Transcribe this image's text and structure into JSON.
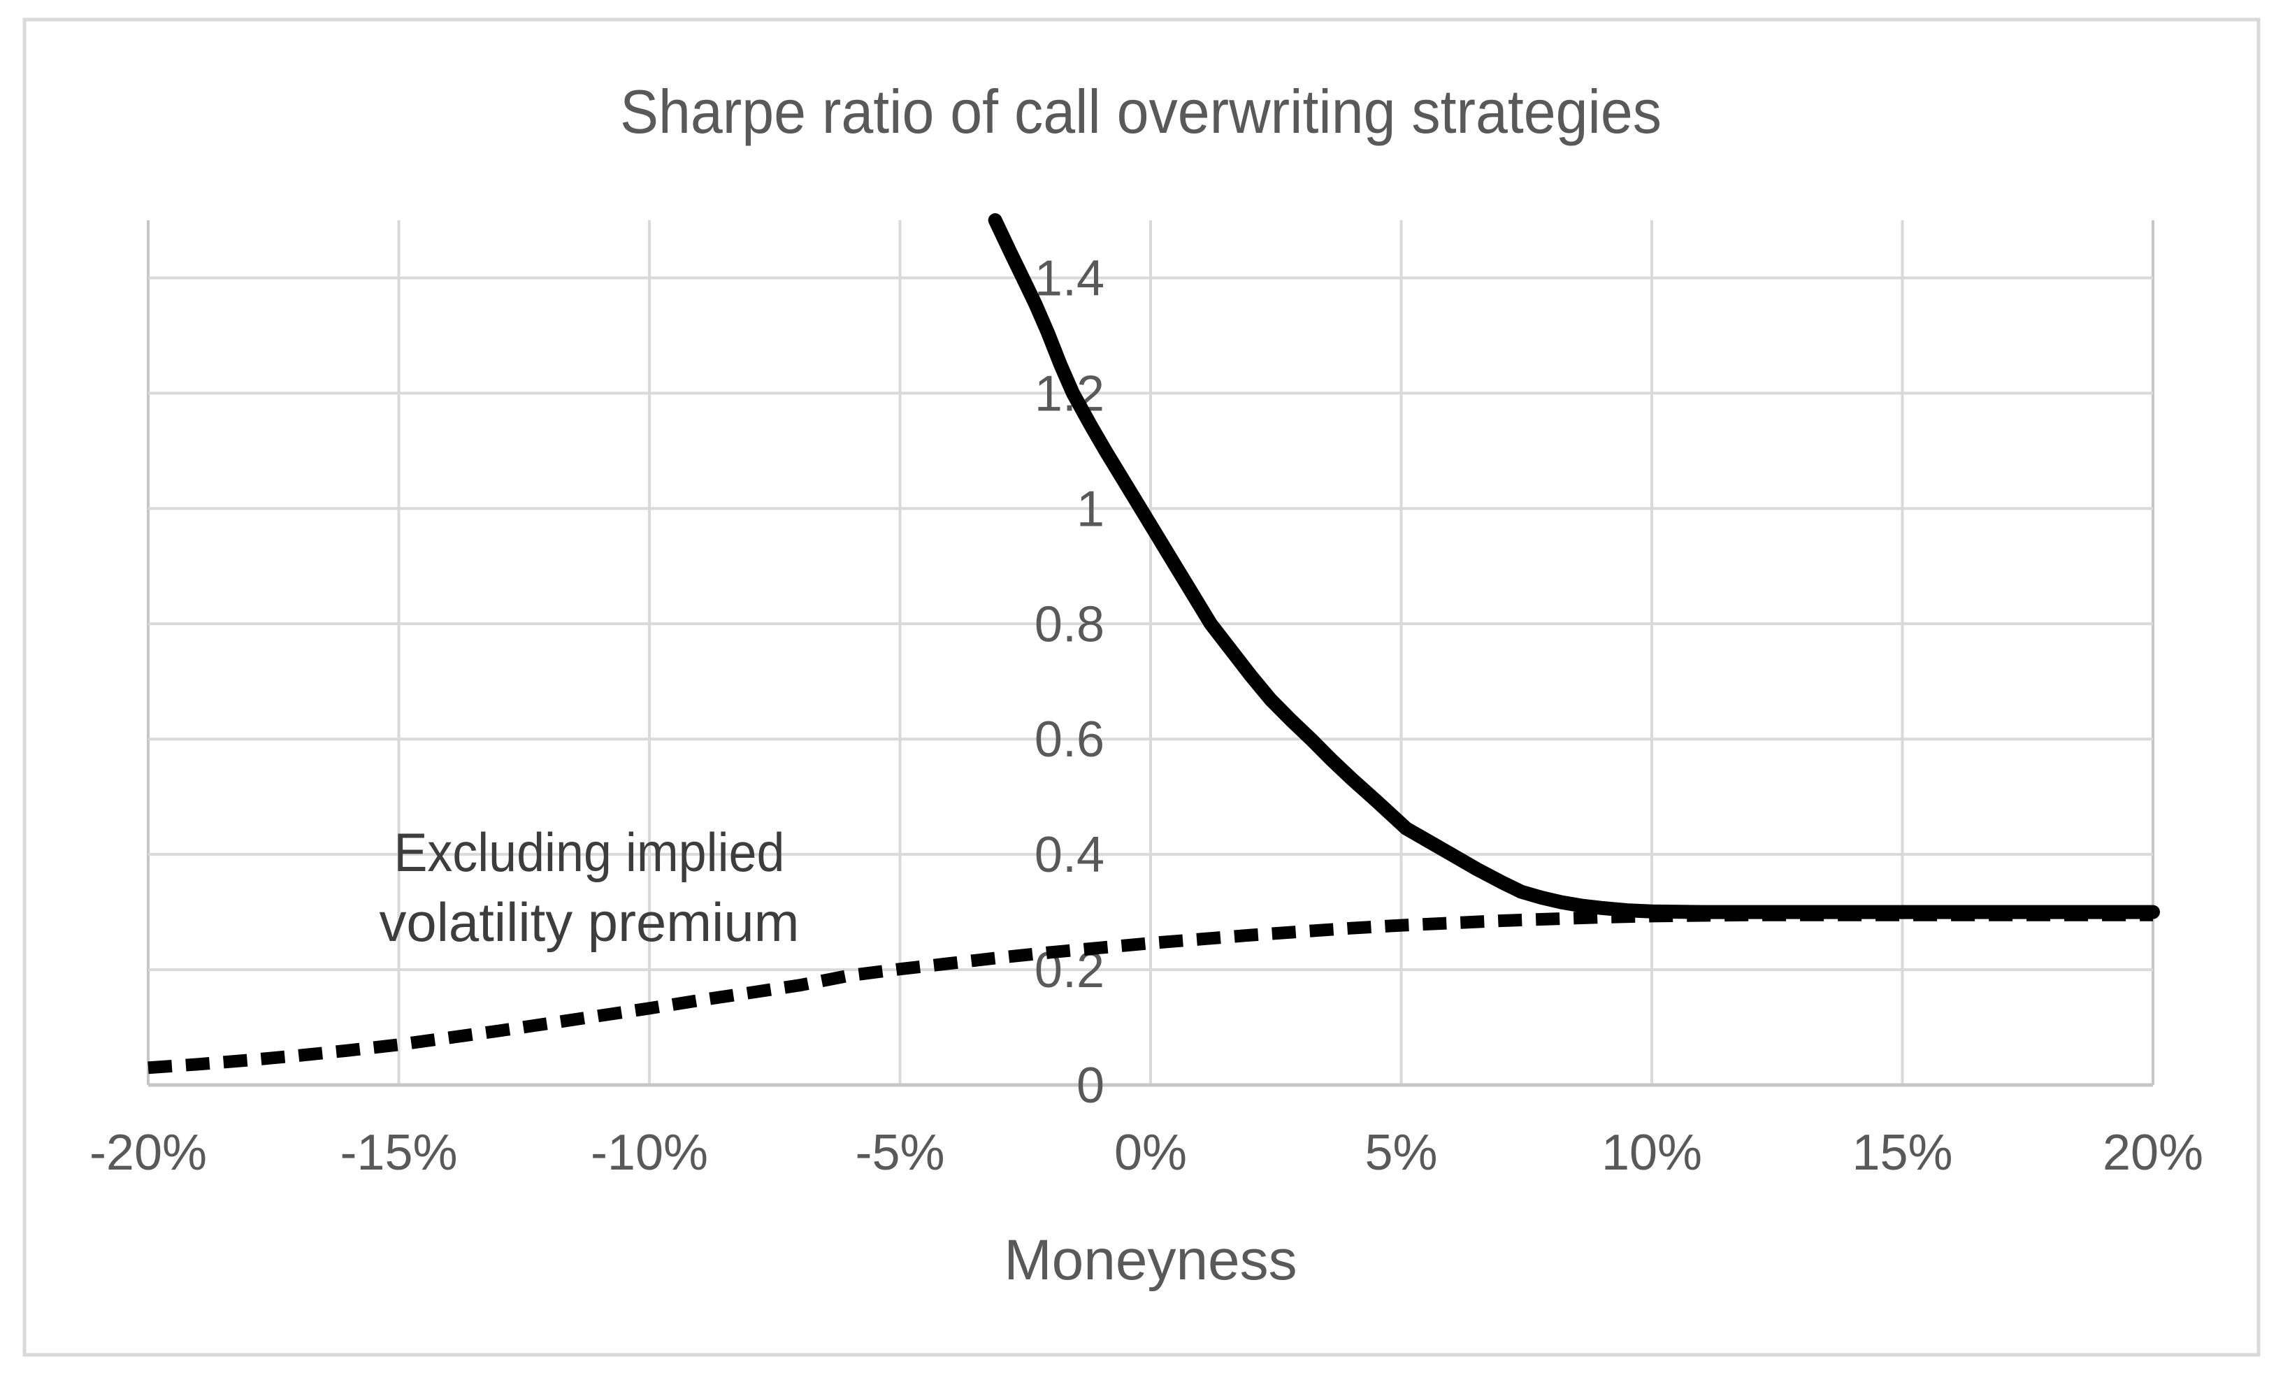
{
  "figure": {
    "background_color": "#ffffff",
    "border_color": "#d9d9d9"
  },
  "colors": {
    "gridline": "#d9d9d9",
    "axis_line": "#c6c6c6",
    "text_gray": "#595959",
    "annotation_text": "#3d3d3d",
    "series_black": "#000000"
  },
  "chart_data": {
    "type": "line",
    "title": "Sharpe ratio of call overwriting strategies",
    "xlabel": "Moneyness",
    "ylabel": "",
    "xlim": [
      -20,
      20
    ],
    "ylim": [
      0,
      1.5
    ],
    "grid": true,
    "legend_position": "none",
    "x_ticks": [
      {
        "value": -20,
        "label": "-20%"
      },
      {
        "value": -15,
        "label": "-15%"
      },
      {
        "value": -10,
        "label": "-10%"
      },
      {
        "value": -5,
        "label": "-5%"
      },
      {
        "value": 0,
        "label": "0%"
      },
      {
        "value": 5,
        "label": "5%"
      },
      {
        "value": 10,
        "label": "10%"
      },
      {
        "value": 15,
        "label": "15%"
      },
      {
        "value": 20,
        "label": "20%"
      }
    ],
    "y_ticks": [
      {
        "value": 0,
        "label": "0"
      },
      {
        "value": 0.2,
        "label": "0.2"
      },
      {
        "value": 0.4,
        "label": "0.4"
      },
      {
        "value": 0.6,
        "label": "0.6"
      },
      {
        "value": 0.8,
        "label": "0.8"
      },
      {
        "value": 1,
        "label": "1"
      },
      {
        "value": 1.2,
        "label": "1.2"
      },
      {
        "value": 1.4,
        "label": "1.4"
      }
    ],
    "annotation": {
      "lines": [
        "Excluding implied",
        "volatility premium"
      ],
      "x": -11.2,
      "y_lines": [
        0.371,
        0.25
      ],
      "points_to": "dashed series"
    },
    "series": [
      {
        "id": "call-overwriting-sharpe",
        "label": "",
        "style": "solid",
        "color": "#000000",
        "points": [
          [
            -3.1,
            1.5
          ],
          [
            -2.8,
            1.445
          ],
          [
            -2.55,
            1.4
          ],
          [
            -2.3,
            1.355
          ],
          [
            -2.05,
            1.305
          ],
          [
            -1.8,
            1.25
          ],
          [
            -1.55,
            1.2
          ],
          [
            -1.2,
            1.145
          ],
          [
            -0.9,
            1.1
          ],
          [
            -0.55,
            1.05
          ],
          [
            -0.2,
            1.0
          ],
          [
            0.15,
            0.95
          ],
          [
            0.5,
            0.9
          ],
          [
            0.85,
            0.85
          ],
          [
            1.2,
            0.8
          ],
          [
            1.6,
            0.755
          ],
          [
            2.0,
            0.71
          ],
          [
            2.4,
            0.668
          ],
          [
            2.8,
            0.633
          ],
          [
            3.2,
            0.6
          ],
          [
            3.6,
            0.565
          ],
          [
            4.0,
            0.532
          ],
          [
            4.5,
            0.493
          ],
          [
            5.1,
            0.445
          ],
          [
            5.6,
            0.42
          ],
          [
            6.0,
            0.4
          ],
          [
            6.5,
            0.375
          ],
          [
            7.0,
            0.352
          ],
          [
            7.4,
            0.335
          ],
          [
            7.8,
            0.325
          ],
          [
            8.2,
            0.317
          ],
          [
            8.6,
            0.311
          ],
          [
            9.0,
            0.307
          ],
          [
            9.5,
            0.303
          ],
          [
            10.0,
            0.301
          ],
          [
            11,
            0.3
          ],
          [
            12,
            0.3
          ],
          [
            13,
            0.3
          ],
          [
            14,
            0.3
          ],
          [
            15,
            0.3
          ],
          [
            16,
            0.3
          ],
          [
            17,
            0.3
          ],
          [
            18,
            0.3
          ],
          [
            19,
            0.3
          ],
          [
            20,
            0.3
          ]
        ]
      },
      {
        "id": "excluding-implied-volatility-premium",
        "label": "Excluding implied volatility premium",
        "style": "dashed",
        "color": "#000000",
        "points": [
          [
            -20,
            0.03
          ],
          [
            -19,
            0.036
          ],
          [
            -18,
            0.043
          ],
          [
            -17,
            0.051
          ],
          [
            -16,
            0.06
          ],
          [
            -15,
            0.07
          ],
          [
            -14,
            0.082
          ],
          [
            -13,
            0.094
          ],
          [
            -12,
            0.107
          ],
          [
            -11,
            0.12
          ],
          [
            -10,
            0.133
          ],
          [
            -9,
            0.147
          ],
          [
            -8,
            0.16
          ],
          [
            -7,
            0.173
          ],
          [
            -6,
            0.19
          ],
          [
            -5,
            0.201
          ],
          [
            -4,
            0.211
          ],
          [
            -3,
            0.221
          ],
          [
            -2,
            0.23
          ],
          [
            -1,
            0.238
          ],
          [
            0,
            0.246
          ],
          [
            1,
            0.253
          ],
          [
            2,
            0.26
          ],
          [
            3,
            0.266
          ],
          [
            4,
            0.272
          ],
          [
            5,
            0.277
          ],
          [
            6,
            0.281
          ],
          [
            7,
            0.285
          ],
          [
            8,
            0.288
          ],
          [
            9,
            0.291
          ],
          [
            10,
            0.293
          ],
          [
            11,
            0.294
          ],
          [
            12,
            0.295
          ],
          [
            13,
            0.295
          ],
          [
            14,
            0.295
          ],
          [
            15,
            0.295
          ],
          [
            16,
            0.295
          ],
          [
            17,
            0.295
          ],
          [
            18,
            0.295
          ],
          [
            19,
            0.295
          ],
          [
            20,
            0.295
          ]
        ]
      }
    ]
  }
}
